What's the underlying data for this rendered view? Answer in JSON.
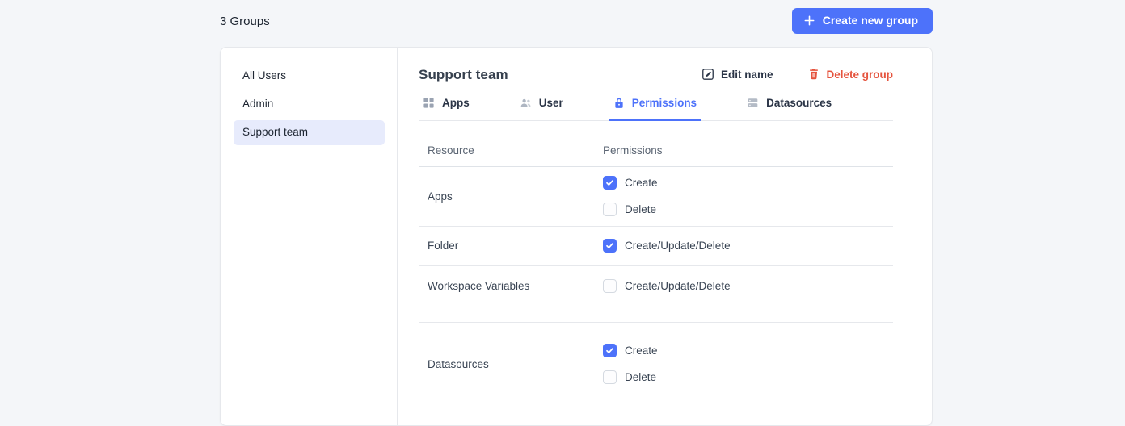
{
  "topbar": {
    "groups_count_label": "3 Groups",
    "create_button": {
      "label": "Create new group",
      "icon": "plus-icon"
    }
  },
  "sidebar": {
    "items": [
      {
        "label": "All Users",
        "selected": false
      },
      {
        "label": "Admin",
        "selected": false
      },
      {
        "label": "Support team",
        "selected": true
      }
    ]
  },
  "panel": {
    "title": "Support team",
    "actions": {
      "edit_label": "Edit name",
      "edit_icon": "edit-pencil-icon",
      "delete_label": "Delete group",
      "delete_icon": "trash-icon"
    },
    "tabs": [
      {
        "label": "Apps",
        "icon": "grid-icon",
        "active": false
      },
      {
        "label": "User",
        "icon": "users-icon",
        "active": false
      },
      {
        "label": "Permissions",
        "icon": "lock-icon",
        "active": true
      },
      {
        "label": "Datasources",
        "icon": "database-icon",
        "active": false
      }
    ],
    "table": {
      "headers": [
        "Resource",
        "Permissions"
      ],
      "rows": [
        {
          "resource": "Apps",
          "permissions": [
            {
              "label": "Create",
              "checked": true
            },
            {
              "label": "Delete",
              "checked": false
            }
          ]
        },
        {
          "resource": "Folder",
          "permissions": [
            {
              "label": "Create/Update/Delete",
              "checked": true
            }
          ]
        },
        {
          "resource": "Workspace Variables",
          "permissions": [
            {
              "label": "Create/Update/Delete",
              "checked": false
            }
          ]
        },
        {
          "resource": "Datasources",
          "permissions": [
            {
              "label": "Create",
              "checked": true
            },
            {
              "label": "Delete",
              "checked": false
            }
          ]
        }
      ]
    }
  },
  "colors": {
    "accent": "#4d72fa",
    "danger": "#e5533d",
    "selected_item_bg": "#e7ebfc",
    "page_bg": "#f4f6f9"
  }
}
